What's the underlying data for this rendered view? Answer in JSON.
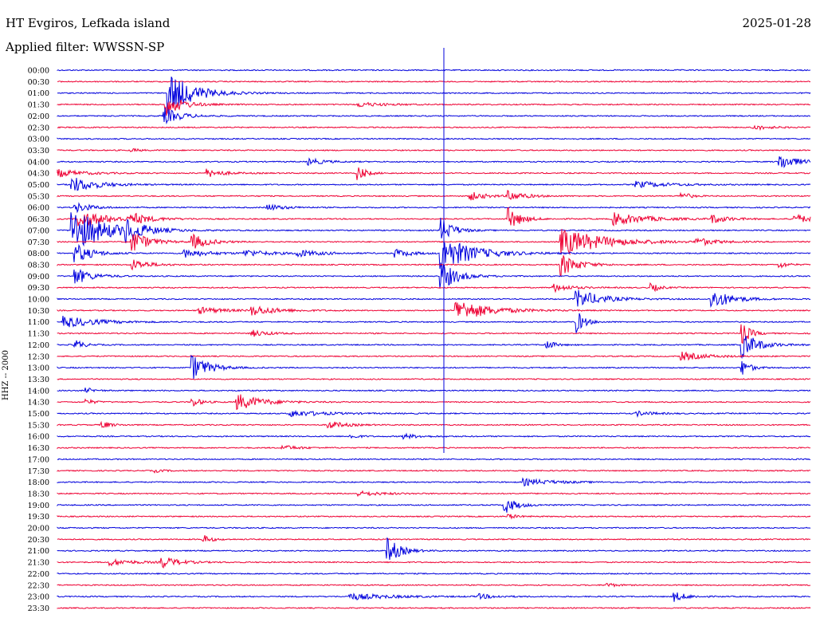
{
  "header": {
    "station": "HT Evgiros, Lefkada island",
    "date": "2025-01-28",
    "filter": "Applied filter: WWSSN-SP"
  },
  "chart_data": {
    "type": "line",
    "ylabel": "HHZ -- 2000",
    "colors": [
      "#0000dd",
      "#ee0033"
    ],
    "rows": [
      {
        "label": "00:00",
        "events": []
      },
      {
        "label": "00:30",
        "events": []
      },
      {
        "label": "01:00",
        "events": [
          {
            "t": 0.149,
            "amp": 26,
            "dur": 0.03
          }
        ]
      },
      {
        "label": "01:30",
        "events": [
          {
            "t": 0.145,
            "amp": 14,
            "dur": 0.02
          },
          {
            "t": 0.4,
            "amp": 3,
            "dur": 0.03
          }
        ]
      },
      {
        "label": "02:00",
        "events": [
          {
            "t": 0.143,
            "amp": 10,
            "dur": 0.02
          }
        ]
      },
      {
        "label": "02:30",
        "events": [
          {
            "t": 0.925,
            "amp": 3,
            "dur": 0.02
          }
        ]
      },
      {
        "label": "03:00",
        "events": []
      },
      {
        "label": "03:30",
        "events": [
          {
            "t": 0.1,
            "amp": 2,
            "dur": 0.01
          }
        ]
      },
      {
        "label": "04:00",
        "events": [
          {
            "t": 0.335,
            "amp": 4,
            "dur": 0.02
          },
          {
            "t": 0.96,
            "amp": 10,
            "dur": 0.02
          }
        ]
      },
      {
        "label": "04:30",
        "events": [
          {
            "t": 0.0,
            "amp": 5,
            "dur": 0.03
          },
          {
            "t": 0.2,
            "amp": 5,
            "dur": 0.02
          },
          {
            "t": 0.4,
            "amp": 9,
            "dur": 0.01
          }
        ]
      },
      {
        "label": "05:00",
        "events": [
          {
            "t": 0.02,
            "amp": 10,
            "dur": 0.03
          },
          {
            "t": 0.77,
            "amp": 4,
            "dur": 0.04
          }
        ]
      },
      {
        "label": "05:30",
        "events": [
          {
            "t": 0.55,
            "amp": 5,
            "dur": 0.02
          },
          {
            "t": 0.6,
            "amp": 6,
            "dur": 0.02
          },
          {
            "t": 0.83,
            "amp": 5,
            "dur": 0.01
          }
        ]
      },
      {
        "label": "06:00",
        "events": [
          {
            "t": 0.025,
            "amp": 6,
            "dur": 0.02
          },
          {
            "t": 0.28,
            "amp": 4,
            "dur": 0.02
          }
        ]
      },
      {
        "label": "06:30",
        "events": [
          {
            "t": 0.03,
            "amp": 10,
            "dur": 0.04
          },
          {
            "t": 0.1,
            "amp": 6,
            "dur": 0.02
          },
          {
            "t": 0.6,
            "amp": 14,
            "dur": 0.015
          },
          {
            "t": 0.74,
            "amp": 8,
            "dur": 0.04
          },
          {
            "t": 0.87,
            "amp": 5,
            "dur": 0.02
          },
          {
            "t": 0.98,
            "amp": 6,
            "dur": 0.02
          }
        ]
      },
      {
        "label": "07:00",
        "events": [
          {
            "t": 0.02,
            "amp": 28,
            "dur": 0.04
          },
          {
            "t": 0.09,
            "amp": 14,
            "dur": 0.02
          },
          {
            "t": 0.51,
            "amp": 16,
            "dur": 0.015
          }
        ]
      },
      {
        "label": "07:30",
        "events": [
          {
            "t": 0.1,
            "amp": 14,
            "dur": 0.02
          },
          {
            "t": 0.18,
            "amp": 9,
            "dur": 0.02
          },
          {
            "t": 0.67,
            "amp": 18,
            "dur": 0.05
          },
          {
            "t": 0.85,
            "amp": 5,
            "dur": 0.02
          }
        ]
      },
      {
        "label": "08:00",
        "events": [
          {
            "t": 0.025,
            "amp": 12,
            "dur": 0.02
          },
          {
            "t": 0.17,
            "amp": 5,
            "dur": 0.03
          },
          {
            "t": 0.25,
            "amp": 4,
            "dur": 0.03
          },
          {
            "t": 0.32,
            "amp": 4,
            "dur": 0.03
          },
          {
            "t": 0.45,
            "amp": 5,
            "dur": 0.02
          },
          {
            "t": 0.51,
            "amp": 22,
            "dur": 0.04
          }
        ]
      },
      {
        "label": "08:30",
        "events": [
          {
            "t": 0.1,
            "amp": 7,
            "dur": 0.02
          },
          {
            "t": 0.67,
            "amp": 14,
            "dur": 0.02
          },
          {
            "t": 0.96,
            "amp": 4,
            "dur": 0.01
          }
        ]
      },
      {
        "label": "09:00",
        "events": [
          {
            "t": 0.025,
            "amp": 10,
            "dur": 0.02
          },
          {
            "t": 0.51,
            "amp": 18,
            "dur": 0.02
          }
        ]
      },
      {
        "label": "09:30",
        "events": [
          {
            "t": 0.66,
            "amp": 5,
            "dur": 0.02
          },
          {
            "t": 0.79,
            "amp": 5,
            "dur": 0.01
          }
        ]
      },
      {
        "label": "10:00",
        "events": [
          {
            "t": 0.69,
            "amp": 12,
            "dur": 0.03
          },
          {
            "t": 0.87,
            "amp": 12,
            "dur": 0.025
          }
        ]
      },
      {
        "label": "10:30",
        "events": [
          {
            "t": 0.19,
            "amp": 4,
            "dur": 0.03
          },
          {
            "t": 0.26,
            "amp": 6,
            "dur": 0.03
          },
          {
            "t": 0.53,
            "amp": 14,
            "dur": 0.04
          }
        ]
      },
      {
        "label": "11:00",
        "events": [
          {
            "t": 0.01,
            "amp": 7,
            "dur": 0.04
          },
          {
            "t": 0.69,
            "amp": 14,
            "dur": 0.01
          }
        ]
      },
      {
        "label": "11:30",
        "events": [
          {
            "t": 0.26,
            "amp": 4,
            "dur": 0.02
          },
          {
            "t": 0.91,
            "amp": 14,
            "dur": 0.01
          }
        ]
      },
      {
        "label": "12:00",
        "events": [
          {
            "t": 0.025,
            "amp": 6,
            "dur": 0.01
          },
          {
            "t": 0.65,
            "amp": 6,
            "dur": 0.01
          },
          {
            "t": 0.91,
            "amp": 16,
            "dur": 0.02
          }
        ]
      },
      {
        "label": "12:30",
        "events": [
          {
            "t": 0.83,
            "amp": 5,
            "dur": 0.03
          }
        ]
      },
      {
        "label": "13:00",
        "events": [
          {
            "t": 0.18,
            "amp": 16,
            "dur": 0.02
          },
          {
            "t": 0.91,
            "amp": 10,
            "dur": 0.01
          }
        ]
      },
      {
        "label": "13:30",
        "events": []
      },
      {
        "label": "14:00",
        "events": [
          {
            "t": 0.04,
            "amp": 3,
            "dur": 0.01
          }
        ]
      },
      {
        "label": "14:30",
        "events": [
          {
            "t": 0.04,
            "amp": 3,
            "dur": 0.01
          },
          {
            "t": 0.18,
            "amp": 6,
            "dur": 0.01
          },
          {
            "t": 0.24,
            "amp": 10,
            "dur": 0.03
          }
        ]
      },
      {
        "label": "15:00",
        "events": [
          {
            "t": 0.31,
            "amp": 4,
            "dur": 0.04
          },
          {
            "t": 0.77,
            "amp": 3,
            "dur": 0.02
          }
        ]
      },
      {
        "label": "15:30",
        "events": [
          {
            "t": 0.06,
            "amp": 5,
            "dur": 0.01
          },
          {
            "t": 0.36,
            "amp": 5,
            "dur": 0.02
          }
        ]
      },
      {
        "label": "16:00",
        "events": [
          {
            "t": 0.39,
            "amp": 3,
            "dur": 0.01
          },
          {
            "t": 0.46,
            "amp": 3,
            "dur": 0.02
          }
        ]
      },
      {
        "label": "16:30",
        "events": [
          {
            "t": 0.3,
            "amp": 3,
            "dur": 0.02
          }
        ]
      },
      {
        "label": "17:00",
        "events": []
      },
      {
        "label": "17:30",
        "events": [
          {
            "t": 0.13,
            "amp": 2,
            "dur": 0.01
          }
        ]
      },
      {
        "label": "18:00",
        "events": [
          {
            "t": 0.62,
            "amp": 4,
            "dur": 0.04
          }
        ]
      },
      {
        "label": "18:30",
        "events": [
          {
            "t": 0.4,
            "amp": 3,
            "dur": 0.03
          }
        ]
      },
      {
        "label": "19:00",
        "events": [
          {
            "t": 0.595,
            "amp": 10,
            "dur": 0.015
          }
        ]
      },
      {
        "label": "19:30",
        "events": [
          {
            "t": 0.6,
            "amp": 3,
            "dur": 0.01
          }
        ]
      },
      {
        "label": "20:00",
        "events": []
      },
      {
        "label": "20:30",
        "events": [
          {
            "t": 0.195,
            "amp": 5,
            "dur": 0.01
          }
        ]
      },
      {
        "label": "21:00",
        "events": [
          {
            "t": 0.44,
            "amp": 16,
            "dur": 0.015
          }
        ]
      },
      {
        "label": "21:30",
        "events": [
          {
            "t": 0.07,
            "amp": 4,
            "dur": 0.03
          },
          {
            "t": 0.14,
            "amp": 7,
            "dur": 0.02
          }
        ]
      },
      {
        "label": "22:00",
        "events": []
      },
      {
        "label": "22:30",
        "events": [
          {
            "t": 0.73,
            "amp": 3,
            "dur": 0.01
          }
        ]
      },
      {
        "label": "23:00",
        "events": [
          {
            "t": 0.39,
            "amp": 4,
            "dur": 0.05
          },
          {
            "t": 0.56,
            "amp": 3,
            "dur": 0.02
          },
          {
            "t": 0.82,
            "amp": 6,
            "dur": 0.015
          }
        ]
      },
      {
        "label": "23:30",
        "events": []
      }
    ]
  }
}
